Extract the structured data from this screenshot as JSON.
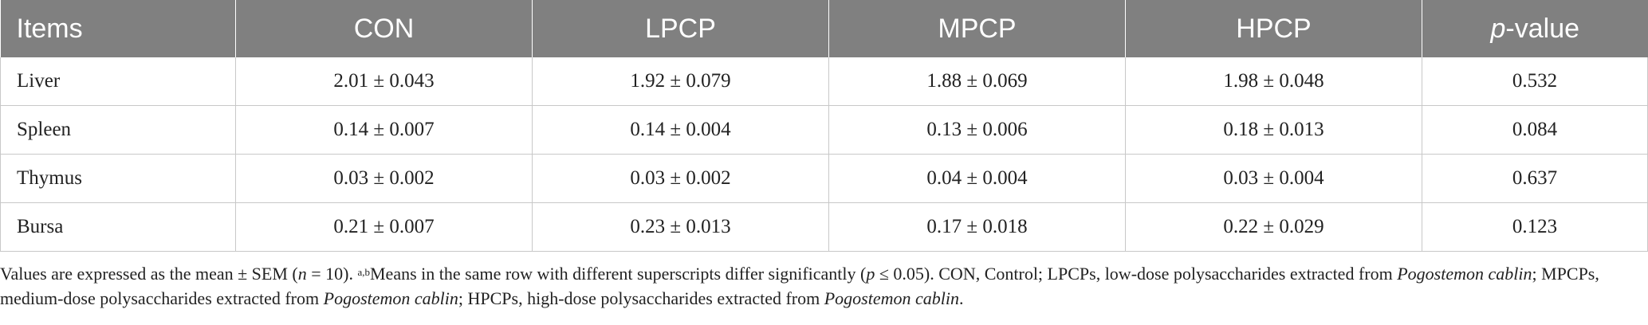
{
  "table": {
    "headers": [
      "Items",
      "CON",
      "LPCP",
      "MPCP",
      "HPCP"
    ],
    "pvalue_header": {
      "p": "p",
      "rest": "-value"
    },
    "rows": [
      [
        "Liver",
        "2.01 ± 0.043",
        "1.92 ± 0.079",
        "1.88 ± 0.069",
        "1.98 ± 0.048",
        "0.532"
      ],
      [
        "Spleen",
        "0.14 ± 0.007",
        "0.14 ± 0.004",
        "0.13 ± 0.006",
        "0.18 ± 0.013",
        "0.084"
      ],
      [
        "Thymus",
        "0.03 ± 0.002",
        "0.03 ± 0.002",
        "0.04 ± 0.004",
        "0.03 ± 0.004",
        "0.637"
      ],
      [
        "Bursa",
        "0.21 ± 0.007",
        "0.23 ± 0.013",
        "0.17 ± 0.018",
        "0.22 ± 0.029",
        "0.123"
      ]
    ]
  },
  "footnote": {
    "t1": "Values are expressed as the mean ± SEM (",
    "n_italic": "n",
    "t2": " = 10). ",
    "sup": "a,b",
    "t3": "Means in the same row with different superscripts differ significantly (",
    "p_italic": "p",
    "t4": " ≤ 0.05). CON, Control; LPCPs, low-dose polysaccharides extracted from ",
    "species1": "Pogostemon cablin",
    "t5": "; MPCPs, medium-dose polysaccharides extracted from ",
    "species2": "Pogostemon cablin",
    "t6": "; HPCPs, high-dose polysaccharides extracted from ",
    "species3": "Pogostemon cablin",
    "t7": "."
  }
}
